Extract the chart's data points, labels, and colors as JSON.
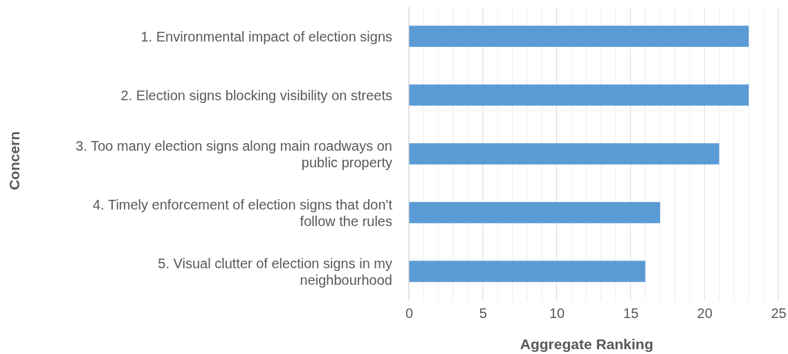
{
  "chart_data": {
    "type": "bar",
    "orientation": "horizontal",
    "categories": [
      "1. Environmental impact of election signs",
      "2. Election signs blocking visibility on streets",
      "3. Too many election signs along main roadways on public property",
      "4. Timely enforcement of election signs that don't follow the rules",
      "5. Visual clutter of election signs in my neighbourhood"
    ],
    "values": [
      23,
      23,
      21,
      17,
      16
    ],
    "color": "#5b9bd5",
    "xlim": [
      0,
      25
    ],
    "xticks": [
      0,
      {
        "value": 1,
        "label": null
      },
      {
        "value": 2,
        "label": null
      },
      {
        "value": 3,
        "label": null
      },
      {
        "value": 4,
        "label": null
      },
      5,
      {
        "value": 6,
        "label": null
      },
      {
        "value": 7,
        "label": null
      },
      {
        "value": 8,
        "label": null
      },
      {
        "value": 9,
        "label": null
      },
      10,
      {
        "value": 11,
        "label": null
      },
      {
        "value": 12,
        "label": null
      },
      {
        "value": 13,
        "label": null
      },
      {
        "value": 14,
        "label": null
      },
      15,
      {
        "value": 16,
        "label": null
      },
      {
        "value": 17,
        "label": null
      },
      {
        "value": 18,
        "label": null
      },
      {
        "value": 19,
        "label": null
      },
      20,
      {
        "value": 21,
        "label": null
      },
      {
        "value": 22,
        "label": null
      },
      {
        "value": 23,
        "label": null
      },
      {
        "value": 24,
        "label": null
      },
      25
    ],
    "xlabel": "Aggregate Ranking",
    "ylabel": "Concern",
    "grid": "x"
  }
}
